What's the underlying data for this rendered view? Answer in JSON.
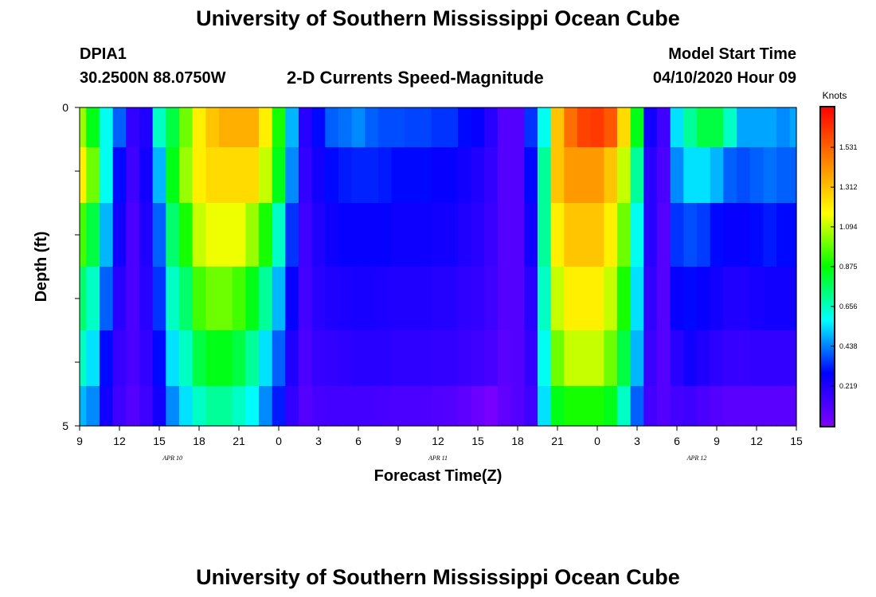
{
  "header": {
    "title": "University of Southern Mississippi Ocean Cube",
    "station_id": "DPIA1",
    "coordinates": "30.2500N 88.0750W",
    "subtitle": "2-D Currents Speed-Magnitude",
    "model_label": "Model Start Time",
    "model_time": "04/10/2020 Hour 09"
  },
  "footer": {
    "title": "University of Southern Mississippi Ocean Cube"
  },
  "chart_data": {
    "type": "heatmap",
    "title": "2-D Currents Speed-Magnitude",
    "xlabel": "Forecast Time(Z)",
    "ylabel": "Depth (ft)",
    "x_tick_labels": [
      "9",
      "12",
      "15",
      "18",
      "21",
      "0",
      "3",
      "6",
      "9",
      "12",
      "15",
      "18",
      "21",
      "0",
      "3",
      "6",
      "9",
      "12",
      "15"
    ],
    "x_ticks_hours": [
      0,
      3,
      6,
      9,
      12,
      15,
      18,
      21,
      24,
      27,
      30,
      33,
      36,
      39,
      42,
      45,
      48,
      51,
      54
    ],
    "x_range_hours": [
      0,
      54
    ],
    "date_labels": [
      {
        "text": "APR 10",
        "hour": 7
      },
      {
        "text": "APR 11",
        "hour": 27
      },
      {
        "text": "APR 12",
        "hour": 46.5
      }
    ],
    "y_tick_labels": [
      "0",
      "5"
    ],
    "y_range_ft": [
      0,
      5
    ],
    "depth_levels_ft": [
      0.25,
      1.0,
      2.0,
      3.0,
      4.0,
      4.75
    ],
    "hours": [
      0,
      1,
      2,
      3,
      4,
      5,
      6,
      7,
      8,
      9,
      10,
      11,
      12,
      13,
      14,
      15,
      16,
      17,
      18,
      19,
      20,
      21,
      22,
      23,
      24,
      25,
      26,
      27,
      28,
      29,
      30,
      31,
      32,
      33,
      34,
      35,
      36,
      37,
      38,
      39,
      40,
      41,
      42,
      43,
      44,
      45,
      46,
      47,
      48,
      49,
      50,
      51,
      52,
      53,
      54
    ],
    "speed_knots": [
      [
        1.05,
        0.85,
        0.6,
        0.4,
        0.18,
        0.22,
        0.65,
        0.8,
        1.0,
        1.2,
        1.3,
        1.35,
        1.35,
        1.35,
        1.2,
        0.9,
        0.5,
        0.2,
        0.3,
        0.4,
        0.42,
        0.45,
        0.4,
        0.38,
        0.38,
        0.37,
        0.37,
        0.35,
        0.35,
        0.3,
        0.28,
        0.2,
        0.1,
        0.1,
        0.35,
        0.6,
        1.3,
        1.5,
        1.6,
        1.62,
        1.55,
        1.25,
        0.85,
        0.25,
        0.15,
        0.55,
        0.7,
        0.8,
        0.8,
        0.65,
        0.48,
        0.48,
        0.48,
        0.45,
        0.48
      ],
      [
        1.2,
        1.0,
        0.6,
        0.3,
        0.15,
        0.25,
        0.5,
        0.85,
        1.05,
        1.2,
        1.25,
        1.25,
        1.25,
        1.25,
        1.1,
        0.85,
        0.45,
        0.18,
        0.25,
        0.3,
        0.32,
        0.33,
        0.33,
        0.32,
        0.3,
        0.3,
        0.3,
        0.28,
        0.28,
        0.25,
        0.22,
        0.18,
        0.1,
        0.1,
        0.3,
        0.7,
        1.3,
        1.4,
        1.4,
        1.4,
        1.3,
        1.1,
        0.7,
        0.2,
        0.12,
        0.45,
        0.55,
        0.55,
        0.5,
        0.4,
        0.38,
        0.4,
        0.42,
        0.4,
        0.4
      ],
      [
        0.95,
        0.8,
        0.5,
        0.25,
        0.12,
        0.22,
        0.4,
        0.75,
        0.9,
        1.1,
        1.15,
        1.15,
        1.15,
        1.05,
        0.9,
        0.65,
        0.35,
        0.15,
        0.22,
        0.26,
        0.28,
        0.28,
        0.28,
        0.28,
        0.26,
        0.26,
        0.26,
        0.25,
        0.25,
        0.22,
        0.2,
        0.16,
        0.1,
        0.1,
        0.25,
        0.7,
        1.2,
        1.3,
        1.3,
        1.3,
        1.2,
        1.0,
        0.6,
        0.2,
        0.1,
        0.35,
        0.38,
        0.36,
        0.3,
        0.28,
        0.28,
        0.3,
        0.32,
        0.3,
        0.3
      ],
      [
        0.75,
        0.65,
        0.4,
        0.2,
        0.12,
        0.2,
        0.35,
        0.65,
        0.75,
        0.95,
        1.0,
        1.0,
        0.95,
        0.85,
        0.7,
        0.5,
        0.28,
        0.14,
        0.2,
        0.22,
        0.23,
        0.24,
        0.24,
        0.23,
        0.22,
        0.22,
        0.22,
        0.21,
        0.21,
        0.19,
        0.18,
        0.15,
        0.1,
        0.1,
        0.2,
        0.65,
        1.1,
        1.2,
        1.2,
        1.2,
        1.1,
        0.9,
        0.55,
        0.18,
        0.1,
        0.28,
        0.3,
        0.28,
        0.25,
        0.22,
        0.22,
        0.24,
        0.25,
        0.25,
        0.25
      ],
      [
        0.65,
        0.55,
        0.3,
        0.17,
        0.12,
        0.18,
        0.3,
        0.55,
        0.65,
        0.8,
        0.85,
        0.85,
        0.8,
        0.7,
        0.55,
        0.4,
        0.22,
        0.12,
        0.17,
        0.18,
        0.19,
        0.2,
        0.2,
        0.2,
        0.19,
        0.19,
        0.19,
        0.18,
        0.18,
        0.16,
        0.15,
        0.13,
        0.09,
        0.1,
        0.18,
        0.6,
        1.0,
        1.1,
        1.1,
        1.1,
        1.0,
        0.8,
        0.5,
        0.16,
        0.1,
        0.2,
        0.25,
        0.22,
        0.19,
        0.17,
        0.17,
        0.18,
        0.18,
        0.18,
        0.18
      ],
      [
        0.5,
        0.45,
        0.25,
        0.15,
        0.1,
        0.15,
        0.25,
        0.45,
        0.55,
        0.65,
        0.7,
        0.7,
        0.65,
        0.58,
        0.45,
        0.32,
        0.18,
        0.1,
        0.13,
        0.14,
        0.14,
        0.14,
        0.14,
        0.13,
        0.12,
        0.12,
        0.12,
        0.11,
        0.1,
        0.08,
        0.05,
        0.02,
        0.07,
        0.1,
        0.15,
        0.55,
        0.85,
        0.9,
        0.9,
        0.9,
        0.85,
        0.65,
        0.4,
        0.14,
        0.1,
        0.14,
        0.15,
        0.12,
        0.1,
        0.09,
        0.09,
        0.09,
        0.09,
        0.09,
        0.09
      ]
    ],
    "colorbar": {
      "label": "Knots",
      "range": [
        0,
        1.75
      ],
      "tick_values": [
        0.219,
        0.438,
        0.656,
        0.875,
        1.094,
        1.312,
        1.531
      ],
      "tick_labels": [
        "0.219",
        "0.438",
        "0.656",
        "0.875",
        "1.094",
        "1.312",
        "1.531"
      ],
      "colors": [
        "#8000ff",
        "#0000ff",
        "#00ffff",
        "#00ff00",
        "#ffff00",
        "#ff8000",
        "#ff0000"
      ]
    }
  }
}
